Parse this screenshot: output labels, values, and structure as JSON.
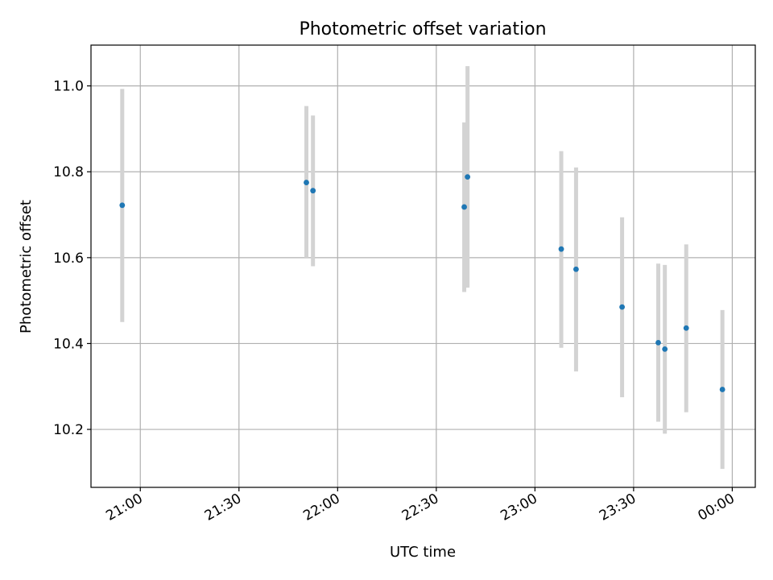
{
  "chart_data": {
    "type": "scatter",
    "title": "Photometric offset variation",
    "xlabel": "UTC time",
    "ylabel": "Photometric offset",
    "x_axis_type": "time",
    "xlim": [
      "20:45",
      "24:07"
    ],
    "ylim": [
      10.065,
      11.095
    ],
    "x_ticks": [
      {
        "t": "21:00",
        "label": "21:00"
      },
      {
        "t": "21:30",
        "label": "21:30"
      },
      {
        "t": "22:00",
        "label": "22:00"
      },
      {
        "t": "22:30",
        "label": "22:30"
      },
      {
        "t": "23:00",
        "label": "23:00"
      },
      {
        "t": "23:30",
        "label": "23:30"
      },
      {
        "t": "24:00",
        "label": "00:00"
      }
    ],
    "y_ticks": [
      10.2,
      10.4,
      10.6,
      10.8,
      11.0
    ],
    "y_tick_labels": [
      "10.2",
      "10.4",
      "10.6",
      "10.8",
      "11.0"
    ],
    "grid": true,
    "x_tick_rotation": "30 degrees",
    "colors": {
      "points": "#1f77b4",
      "error_bars": "#d3d3d3",
      "grid": "#b0b0b0"
    },
    "series": [
      {
        "points": [
          {
            "t": "20:54:30",
            "y": 10.722,
            "ylo": 10.45,
            "yhi": 10.993
          },
          {
            "t": "21:50:30",
            "y": 10.775,
            "ylo": 10.6,
            "yhi": 10.953
          },
          {
            "t": "21:52:30",
            "y": 10.756,
            "ylo": 10.58,
            "yhi": 10.931
          },
          {
            "t": "22:38:30",
            "y": 10.718,
            "ylo": 10.52,
            "yhi": 10.915
          },
          {
            "t": "22:39:30",
            "y": 10.788,
            "ylo": 10.53,
            "yhi": 11.046
          },
          {
            "t": "23:08:00",
            "y": 10.62,
            "ylo": 10.39,
            "yhi": 10.848
          },
          {
            "t": "23:12:30",
            "y": 10.573,
            "ylo": 10.335,
            "yhi": 10.81
          },
          {
            "t": "23:26:30",
            "y": 10.485,
            "ylo": 10.275,
            "yhi": 10.694
          },
          {
            "t": "23:37:30",
            "y": 10.402,
            "ylo": 10.218,
            "yhi": 10.586
          },
          {
            "t": "23:39:30",
            "y": 10.387,
            "ylo": 10.19,
            "yhi": 10.583
          },
          {
            "t": "23:46:00",
            "y": 10.436,
            "ylo": 10.24,
            "yhi": 10.631
          },
          {
            "t": "23:57:00",
            "y": 10.293,
            "ylo": 10.108,
            "yhi": 10.478
          }
        ]
      }
    ]
  }
}
